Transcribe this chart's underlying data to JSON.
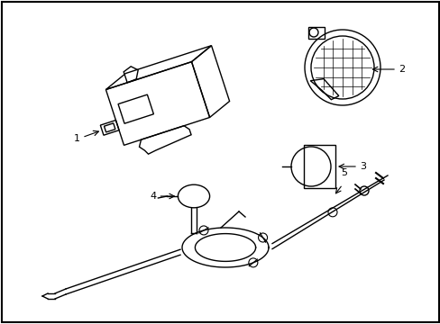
{
  "background_color": "#ffffff",
  "border_color": "#000000",
  "line_color": "#000000",
  "fig_width": 4.89,
  "fig_height": 3.6,
  "dpi": 100
}
